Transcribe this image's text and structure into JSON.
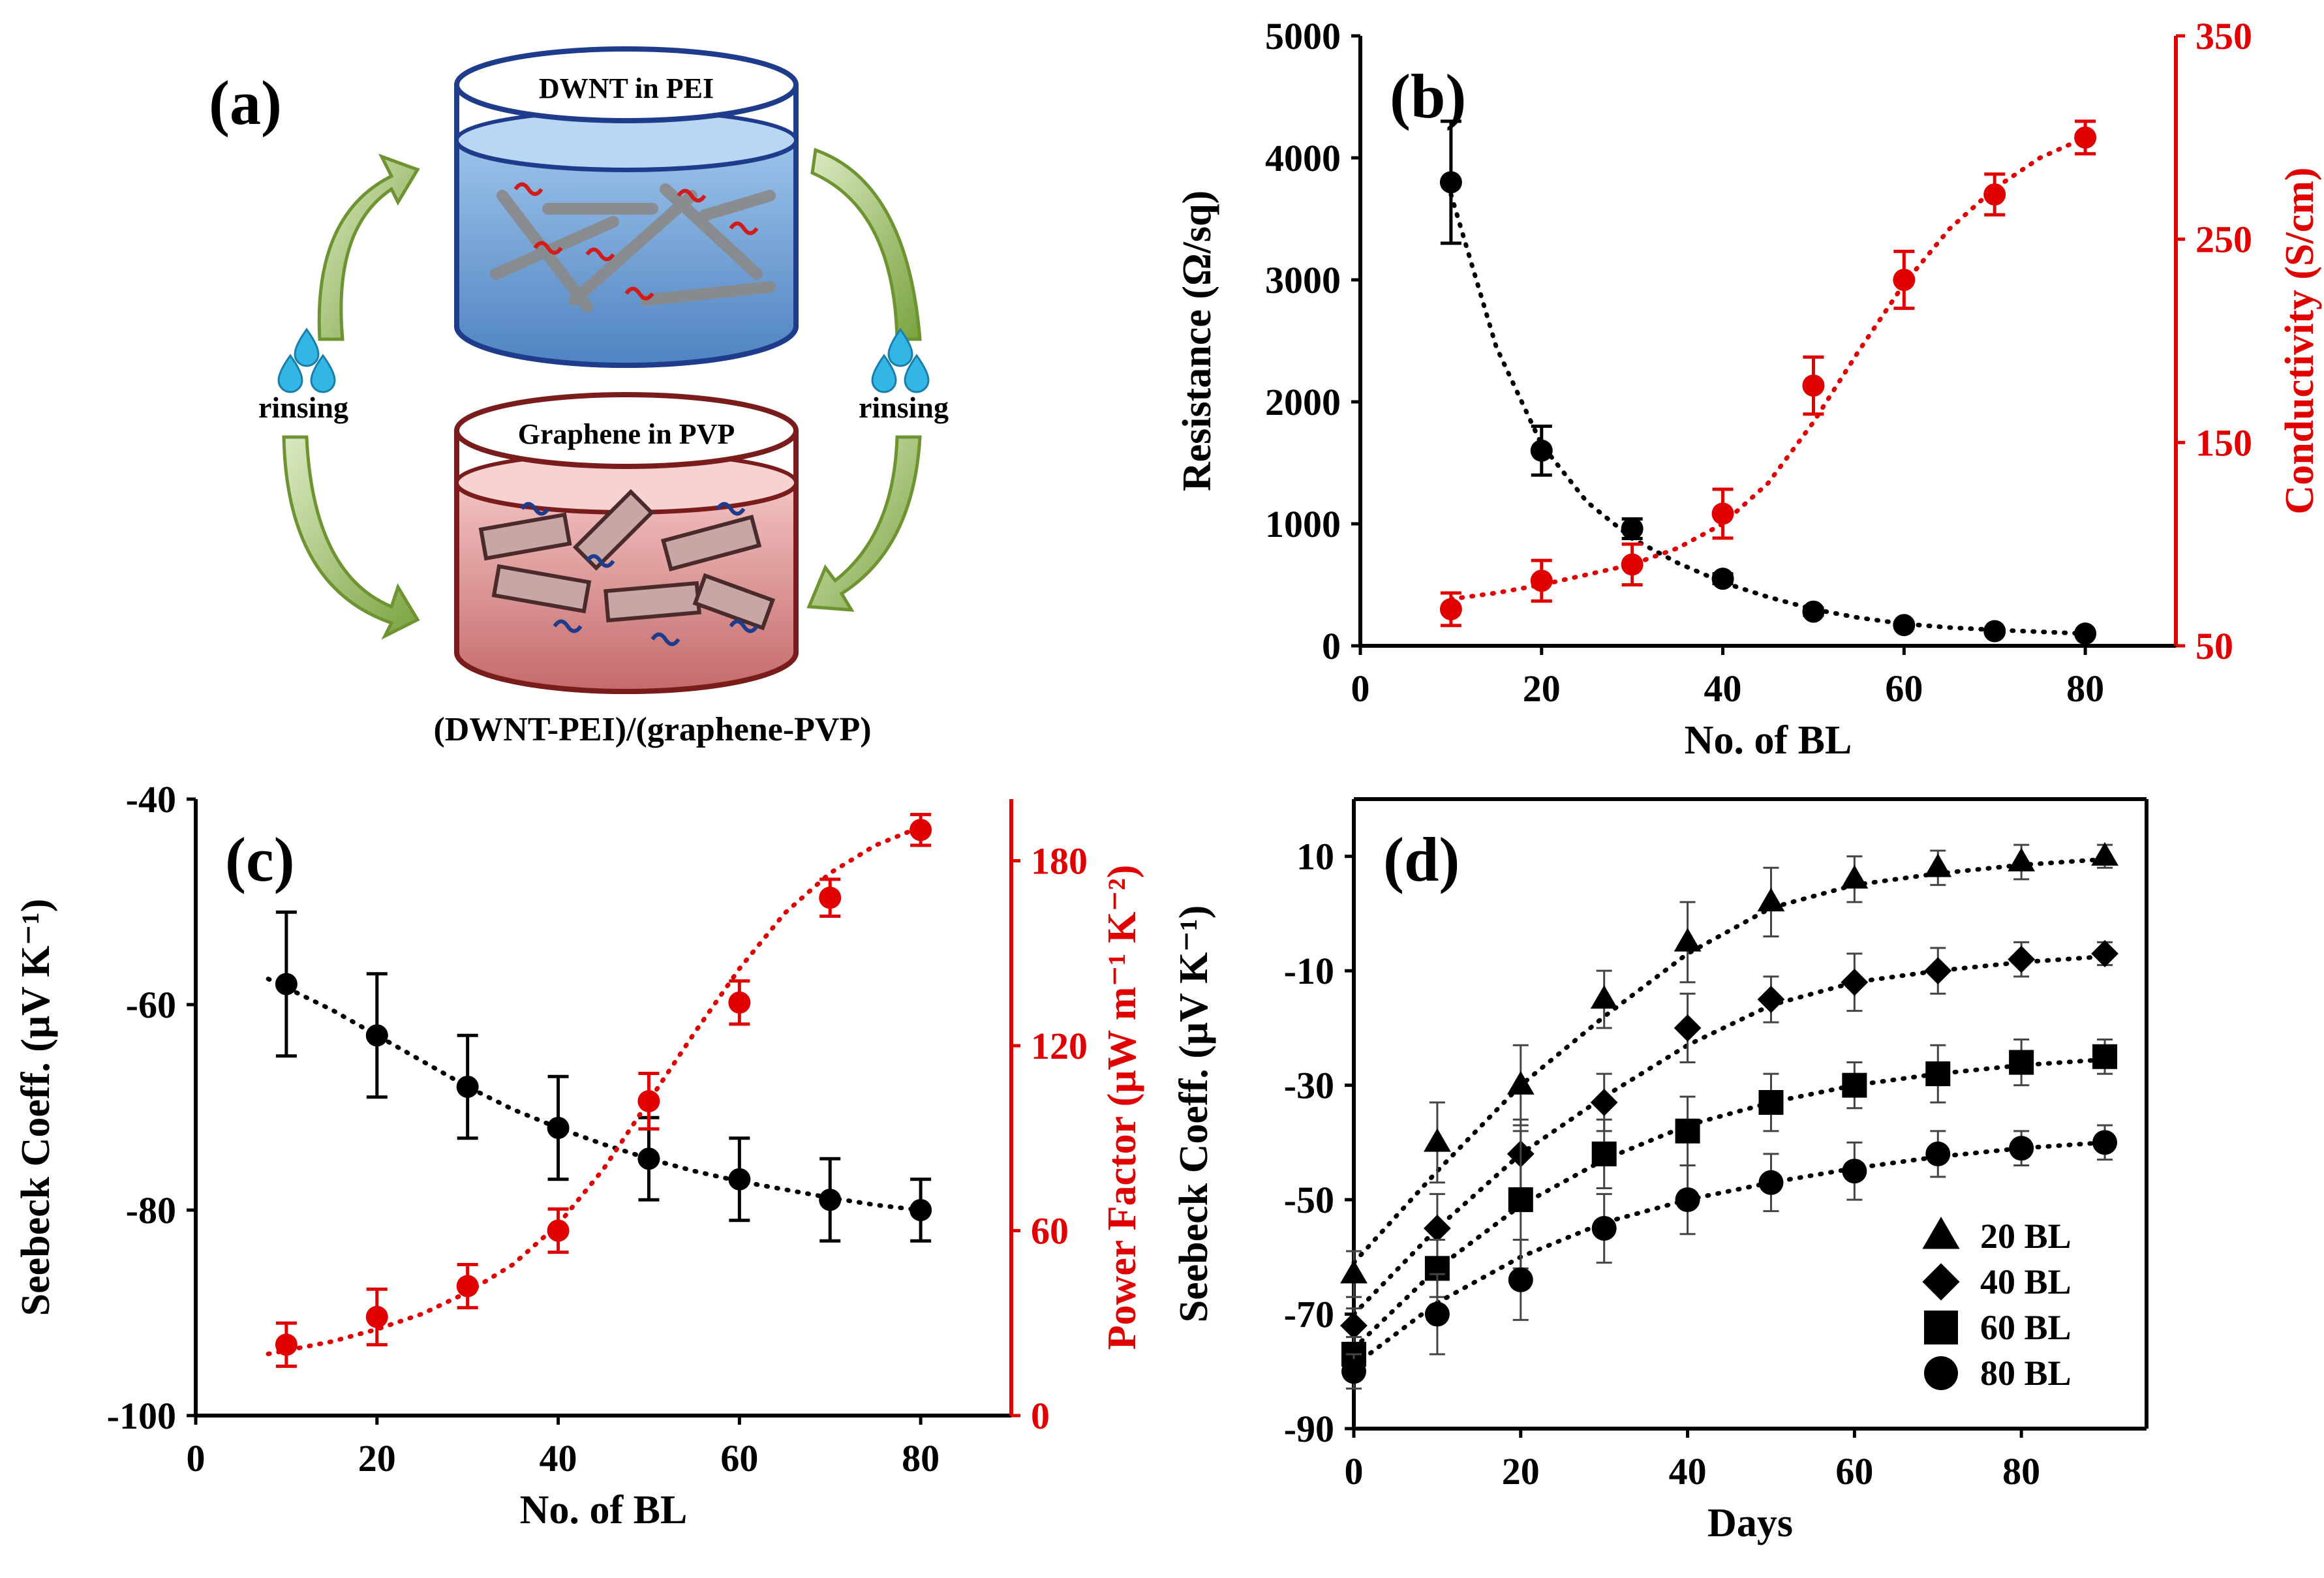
{
  "colors": {
    "black": "#000000",
    "red": "#e00000",
    "arrow_green": "#8cb050",
    "beaker_blue": "#6b9bd1",
    "beaker_red": "#d98888",
    "drop_blue": "#33b5e5"
  },
  "panel_a": {
    "label": "(a)",
    "top_beaker_label": "DWNT in PEI",
    "bottom_beaker_label": "Graphene in PVP",
    "left_rinse_label": "rinsing",
    "right_rinse_label": "rinsing",
    "caption": "(DWNT-PEI)/(graphene-PVP)"
  },
  "chart_data": [
    {
      "id": "b",
      "type": "scatter",
      "panel_label": "(b)",
      "xlabel": "No. of BL",
      "ylabel": "Resistance (Ω/sq)",
      "y2label": "Conductivity (S/cm)",
      "xlim": [
        0,
        90
      ],
      "ylim": [
        0,
        5000
      ],
      "y2lim": [
        50,
        350
      ],
      "xticks": [
        0,
        20,
        40,
        60,
        80
      ],
      "yticks": [
        0,
        1000,
        2000,
        3000,
        4000,
        5000
      ],
      "y2ticks": [
        50,
        150,
        250,
        350
      ],
      "series": [
        {
          "axis": "left",
          "color": "#000000",
          "x": [
            10,
            20,
            30,
            40,
            50,
            60,
            70,
            80
          ],
          "y": [
            3800,
            1600,
            960,
            550,
            280,
            170,
            120,
            100
          ],
          "err": [
            500,
            200,
            80,
            40,
            30,
            20,
            15,
            10
          ],
          "fit_x": [
            10,
            15,
            20,
            25,
            30,
            35,
            40,
            45,
            50,
            55,
            60,
            65,
            70,
            75,
            80
          ],
          "fit_y": [
            3700,
            2450,
            1650,
            1180,
            880,
            680,
            520,
            400,
            300,
            230,
            180,
            150,
            130,
            115,
            100
          ]
        },
        {
          "axis": "right",
          "color": "#e00000",
          "x": [
            10,
            20,
            30,
            40,
            50,
            60,
            70,
            80
          ],
          "y": [
            68,
            82,
            90,
            115,
            178,
            230,
            272,
            300
          ],
          "err": [
            8,
            10,
            10,
            12,
            14,
            14,
            10,
            8
          ],
          "fit_x": [
            10,
            15,
            20,
            25,
            30,
            35,
            40,
            45,
            50,
            55,
            60,
            65,
            70,
            75,
            80
          ],
          "fit_y": [
            73,
            76,
            80,
            85,
            90,
            98,
            110,
            130,
            160,
            195,
            228,
            255,
            275,
            290,
            300
          ]
        }
      ]
    },
    {
      "id": "c",
      "type": "scatter",
      "panel_label": "(c)",
      "xlabel": "No. of BL",
      "ylabel": "Seebeck Coeff. (μV K⁻¹)",
      "y2label": "Power Factor (μW m⁻¹ K⁻²)",
      "xlim": [
        0,
        90
      ],
      "ylim": [
        -100,
        -40
      ],
      "y2lim": [
        0,
        200
      ],
      "xticks": [
        0,
        20,
        40,
        60,
        80
      ],
      "yticks": [
        -100,
        -80,
        -60,
        -40
      ],
      "y2ticks": [
        0,
        60,
        120,
        180
      ],
      "series": [
        {
          "axis": "left",
          "color": "#000000",
          "x": [
            10,
            20,
            30,
            40,
            50,
            60,
            70,
            80
          ],
          "y": [
            -58,
            -63,
            -68,
            -72,
            -75,
            -77,
            -79,
            -80
          ],
          "err": [
            7,
            6,
            5,
            5,
            4,
            4,
            4,
            3
          ],
          "fit_x": [
            8,
            15,
            20,
            25,
            30,
            35,
            40,
            45,
            50,
            55,
            60,
            65,
            70,
            75,
            80
          ],
          "fit_y": [
            -57.5,
            -60.5,
            -63,
            -65.5,
            -68,
            -70.2,
            -72,
            -73.6,
            -75,
            -76.2,
            -77.2,
            -78,
            -78.8,
            -79.5,
            -80
          ]
        },
        {
          "axis": "right",
          "color": "#e00000",
          "x": [
            10,
            20,
            30,
            40,
            50,
            60,
            70,
            80
          ],
          "y": [
            23,
            32,
            42,
            60,
            102,
            134,
            168,
            190
          ],
          "err": [
            7,
            9,
            7,
            7,
            9,
            7,
            6,
            5
          ],
          "fit_x": [
            8,
            15,
            20,
            25,
            30,
            35,
            40,
            45,
            50,
            55,
            60,
            65,
            70,
            75,
            80
          ],
          "fit_y": [
            20,
            24,
            28,
            33,
            40,
            49,
            62,
            80,
            102,
            124,
            145,
            163,
            176,
            185,
            191
          ]
        }
      ]
    },
    {
      "id": "d",
      "type": "scatter",
      "panel_label": "(d)",
      "xlabel": "Days",
      "ylabel": "Seebeck Coeff. (μV K⁻¹)",
      "xlim": [
        0,
        95
      ],
      "ylim": [
        -90,
        20
      ],
      "xticks": [
        0,
        20,
        40,
        60,
        80
      ],
      "yticks": [
        -90,
        -70,
        -50,
        -30,
        -10,
        10
      ],
      "legend_position": "bottom-right",
      "series": [
        {
          "name": "20 BL",
          "marker": "triangle",
          "x": [
            0,
            10,
            20,
            30,
            40,
            50,
            60,
            70,
            80,
            90
          ],
          "y": [
            -63,
            -40,
            -30,
            -15,
            -5,
            2,
            6,
            8,
            9,
            10
          ],
          "err": [
            4,
            7,
            7,
            5,
            7,
            6,
            4,
            3,
            3,
            2
          ],
          "fit_y": [
            -61,
            -45,
            -30,
            -18,
            -7,
            1,
            5,
            7,
            8.5,
            9.5
          ]
        },
        {
          "name": "40 BL",
          "marker": "diamond",
          "x": [
            0,
            10,
            20,
            30,
            40,
            50,
            60,
            70,
            80,
            90
          ],
          "y": [
            -72,
            -55,
            -42,
            -33,
            -20,
            -15,
            -12,
            -10,
            -8,
            -7
          ],
          "err": [
            3,
            6,
            6,
            5,
            6,
            4,
            5,
            4,
            3,
            2
          ],
          "fit_y": [
            -70,
            -55,
            -42,
            -32,
            -23,
            -16,
            -12,
            -10,
            -8.5,
            -7.5
          ]
        },
        {
          "name": "60 BL",
          "marker": "square",
          "x": [
            0,
            10,
            20,
            30,
            40,
            50,
            60,
            70,
            80,
            90
          ],
          "y": [
            -77,
            -62,
            -50,
            -42,
            -38,
            -33,
            -30,
            -28,
            -26,
            -25
          ],
          "err": [
            3,
            5,
            12,
            6,
            6,
            5,
            4,
            5,
            4,
            3
          ],
          "fit_y": [
            -76,
            -62,
            -51,
            -43,
            -37,
            -33,
            -30,
            -28,
            -26.5,
            -25.5
          ]
        },
        {
          "name": "80 BL",
          "marker": "circle",
          "x": [
            0,
            10,
            20,
            30,
            40,
            50,
            60,
            70,
            80,
            90
          ],
          "y": [
            -80,
            -70,
            -64,
            -55,
            -50,
            -47,
            -45,
            -42,
            -41,
            -40
          ],
          "err": [
            3,
            7,
            7,
            6,
            6,
            5,
            5,
            4,
            3,
            3
          ],
          "fit_y": [
            -79,
            -68,
            -60,
            -54,
            -50,
            -47,
            -44.5,
            -42.5,
            -41,
            -40
          ]
        }
      ]
    }
  ]
}
